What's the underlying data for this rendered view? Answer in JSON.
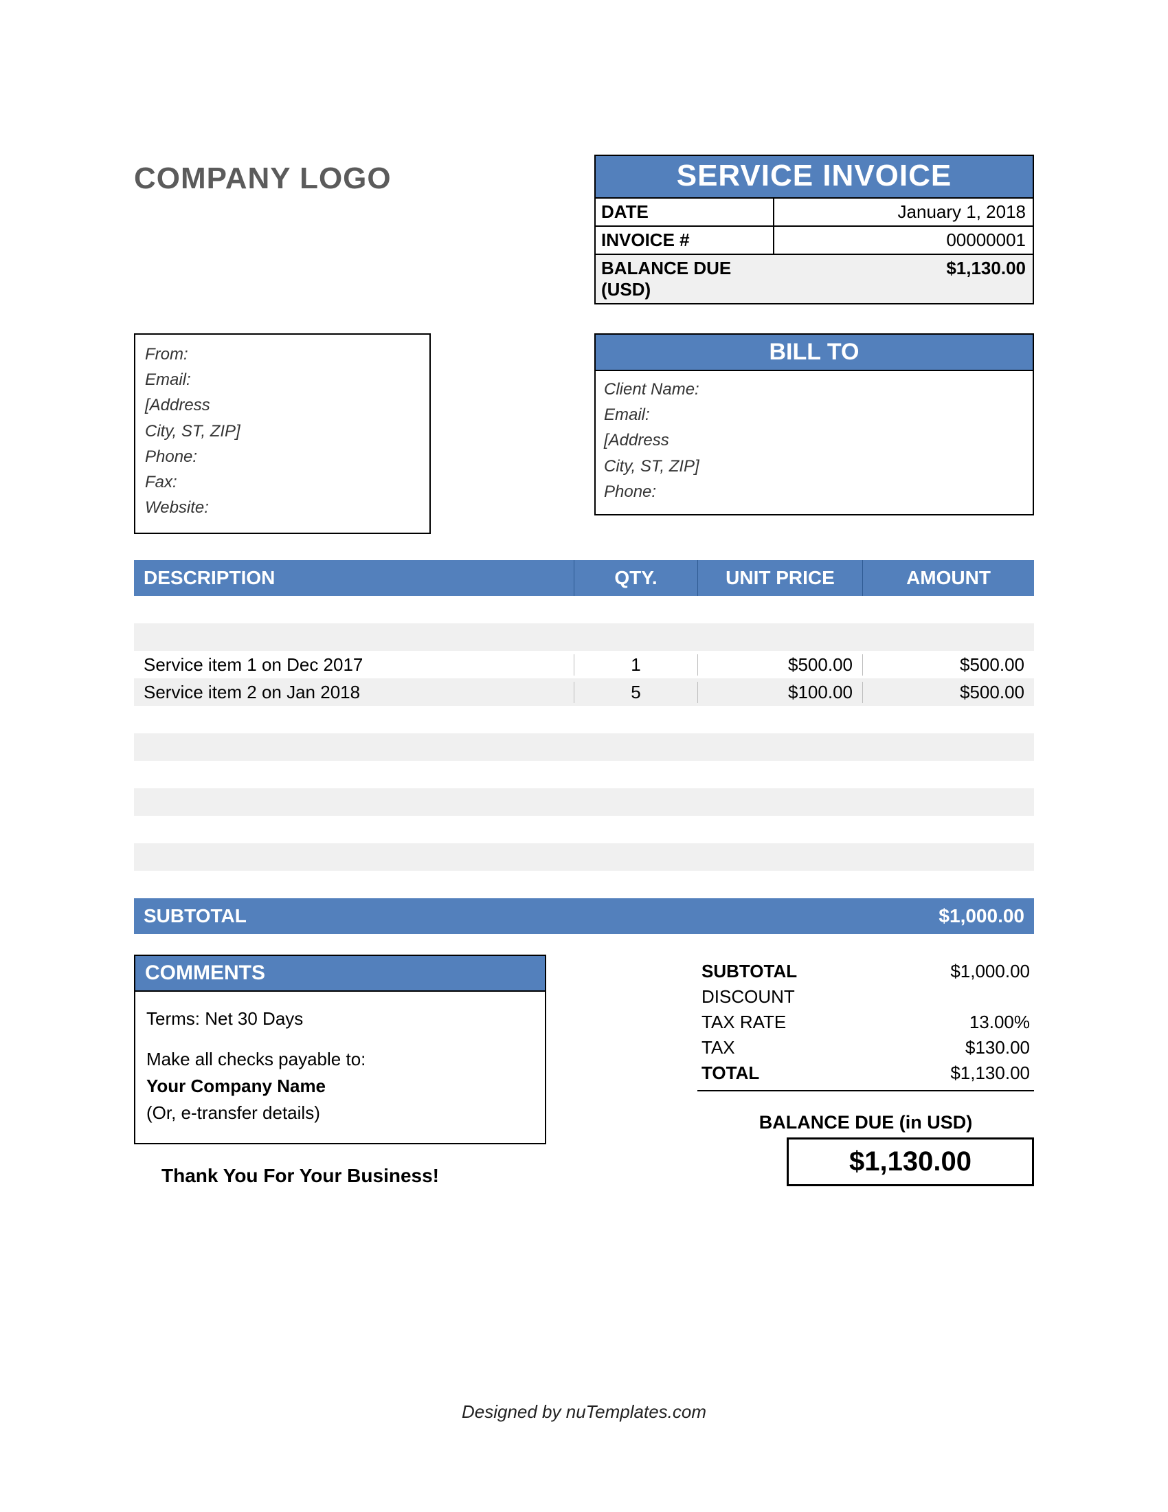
{
  "colors": {
    "accent": "#5380bc",
    "background": "#ffffff",
    "stripe": "#f0f0f0",
    "border": "#000000",
    "logo_text": "#5b5b5b"
  },
  "logo": "COMPANY LOGO",
  "header": {
    "title": "SERVICE INVOICE",
    "date_label": "DATE",
    "date_value": "January 1, 2018",
    "invoice_label": "INVOICE #",
    "invoice_value": "00000001",
    "balance_label": "BALANCE DUE (USD)",
    "balance_value": "$1,130.00"
  },
  "from": {
    "line1": "From:",
    "line2": "Email:",
    "line3": "[Address",
    "line4": "City, ST, ZIP]",
    "line5": "Phone:",
    "line6": "Fax:",
    "line7": "Website:"
  },
  "billto": {
    "title": "BILL TO",
    "line1": "Client Name:",
    "line2": "Email:",
    "line3": "[Address",
    "line4": "City, ST, ZIP]",
    "line5": "Phone:"
  },
  "items": {
    "columns": {
      "desc": "DESCRIPTION",
      "qty": "QTY.",
      "unit": "UNIT PRICE",
      "amount": "AMOUNT"
    },
    "rows": [
      {
        "desc": "",
        "qty": "",
        "unit": "",
        "amount": ""
      },
      {
        "desc": "",
        "qty": "",
        "unit": "",
        "amount": ""
      },
      {
        "desc": "Service item 1 on Dec 2017",
        "qty": "1",
        "unit": "$500.00",
        "amount": "$500.00"
      },
      {
        "desc": "Service item 2 on Jan 2018",
        "qty": "5",
        "unit": "$100.00",
        "amount": "$500.00"
      },
      {
        "desc": "",
        "qty": "",
        "unit": "",
        "amount": ""
      },
      {
        "desc": "",
        "qty": "",
        "unit": "",
        "amount": ""
      },
      {
        "desc": "",
        "qty": "",
        "unit": "",
        "amount": ""
      },
      {
        "desc": "",
        "qty": "",
        "unit": "",
        "amount": ""
      },
      {
        "desc": "",
        "qty": "",
        "unit": "",
        "amount": ""
      },
      {
        "desc": "",
        "qty": "",
        "unit": "",
        "amount": ""
      },
      {
        "desc": "",
        "qty": "",
        "unit": "",
        "amount": ""
      }
    ],
    "subtotal_label": "SUBTOTAL",
    "subtotal_value": "$1,000.00"
  },
  "comments": {
    "title": "COMMENTS",
    "terms": "Terms: Net 30 Days",
    "payable": "Make all checks payable to:",
    "company": "Your Company Name",
    "etransfer": "(Or, e-transfer details)"
  },
  "totals": {
    "subtotal_label": "SUBTOTAL",
    "subtotal_value": "$1,000.00",
    "discount_label": "DISCOUNT",
    "discount_value": "",
    "taxrate_label": "TAX RATE",
    "taxrate_value": "13.00%",
    "tax_label": "TAX",
    "tax_value": "$130.00",
    "total_label": "TOTAL",
    "total_value": "$1,130.00"
  },
  "balance_due": {
    "label": "BALANCE DUE (in USD)",
    "value": "$1,130.00"
  },
  "thankyou": "Thank You For Your Business!",
  "footer": "Designed by nuTemplates.com"
}
